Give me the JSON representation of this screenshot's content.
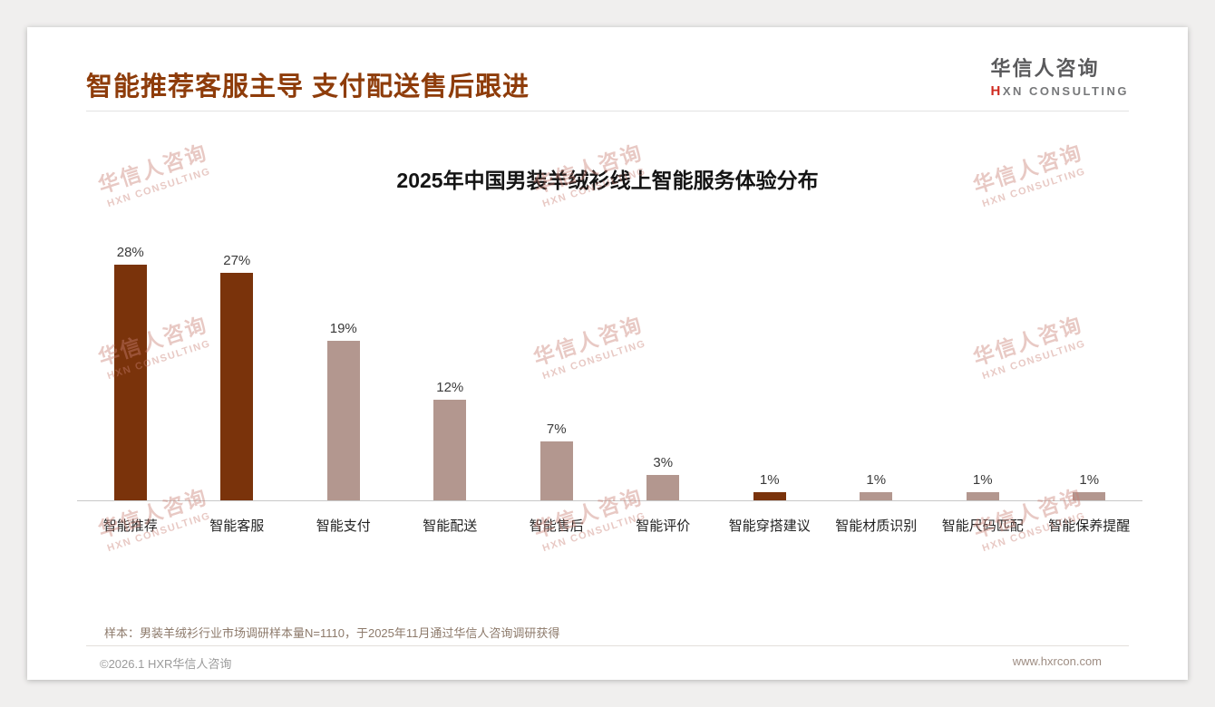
{
  "header": {
    "title": "智能推荐客服主导 支付配送售后跟进"
  },
  "logo": {
    "cn": "华信人咨询",
    "en_h": "H",
    "en_rest": "XN CONSULTING"
  },
  "watermark": {
    "line1": "华信人咨询",
    "line2": "HXN CONSULTING"
  },
  "chart_data": {
    "type": "bar",
    "title": "2025年中国男装羊绒衫线上智能服务体验分布",
    "categories": [
      "智能推荐",
      "智能客服",
      "智能支付",
      "智能配送",
      "智能售后",
      "智能评价",
      "智能穿搭建议",
      "智能材质识别",
      "智能尺码匹配",
      "智能保养提醒"
    ],
    "values": [
      28,
      27,
      19,
      12,
      7,
      3,
      1,
      1,
      1,
      1
    ],
    "labels": [
      "28%",
      "27%",
      "19%",
      "12%",
      "7%",
      "3%",
      "1%",
      "1%",
      "1%",
      "1%"
    ],
    "colors": [
      "#7a330b",
      "#7a330b",
      "#b3978f",
      "#b3978f",
      "#b3978f",
      "#b3978f",
      "#7a330b",
      "#b3978f",
      "#b3978f",
      "#b3978f"
    ],
    "xlabel": "",
    "ylabel": "",
    "ylim": [
      0,
      30
    ],
    "grid": false,
    "legend": false
  },
  "note": "样本：男装羊绒衫行业市场调研样本量N=1110，于2025年11月通过华信人咨询调研获得",
  "footer": {
    "copyright": "©2026.1 HXR华信人咨询",
    "website": "www.hxrcon.com"
  },
  "theme": {
    "title_color": "#8e3c0a",
    "dark_bar": "#7a330b",
    "light_bar": "#b3978f",
    "watermark_color": "#c97f74",
    "logo_red": "#cf2b20"
  }
}
